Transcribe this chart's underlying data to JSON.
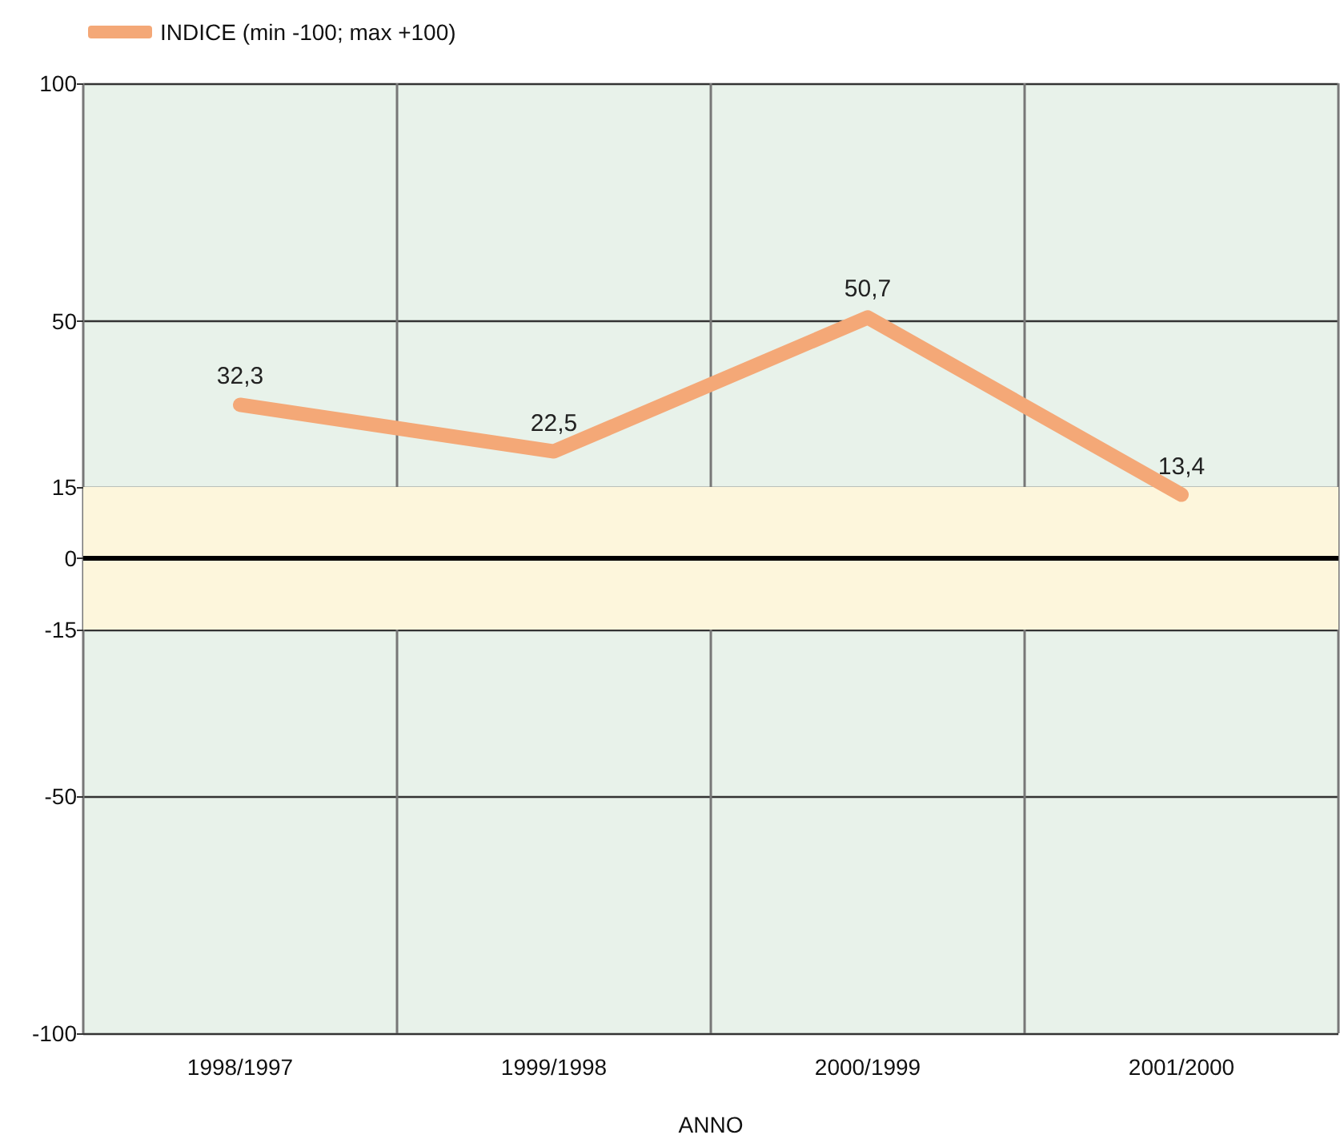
{
  "chart_data": {
    "type": "line",
    "xlabel": "ANNO",
    "categories": [
      "1998/1997",
      "1999/1998",
      "2000/1999",
      "2001/2000"
    ],
    "series": [
      {
        "name": "INDICE (min -100; max +100)",
        "color": "#f4a877",
        "values": [
          32.3,
          22.5,
          50.7,
          13.4
        ],
        "value_labels": [
          "32,3",
          "22,5",
          "50,7",
          "13,4"
        ]
      }
    ],
    "ylim": [
      -100,
      100
    ],
    "yticks": [
      -100,
      -50,
      -15,
      0,
      15,
      50,
      100
    ],
    "bands": [
      {
        "axis": "y",
        "from": -15,
        "to": 15,
        "color": "#fdf6dc"
      }
    ],
    "ref_lines": [
      {
        "axis": "y",
        "value": 0,
        "color": "#000000"
      }
    ],
    "grid": true,
    "legend": "top left",
    "marker": "none",
    "line_style": "solid"
  }
}
